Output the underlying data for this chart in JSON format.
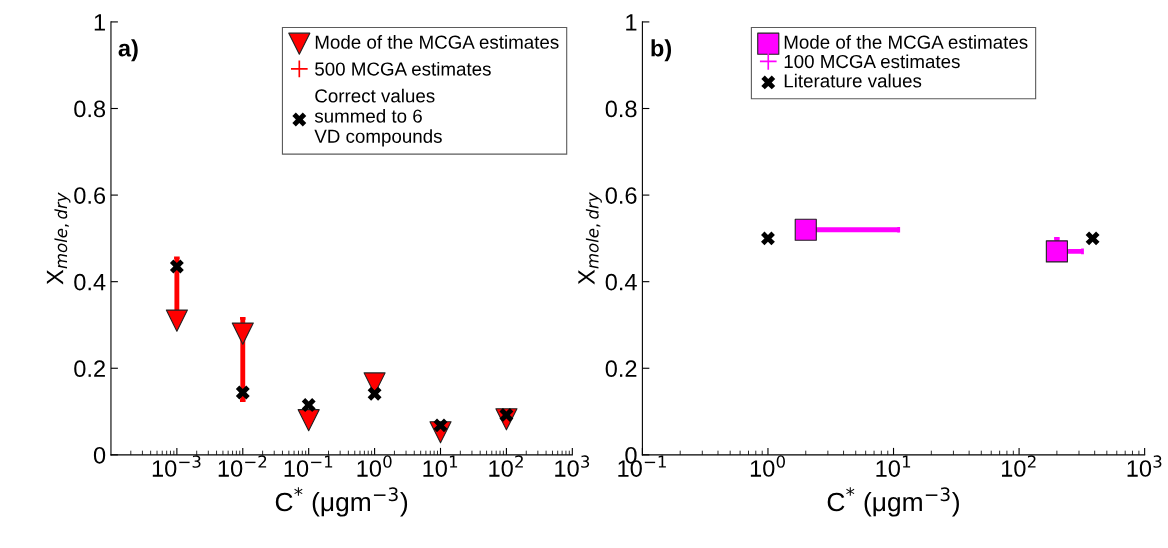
{
  "chart_data": [
    {
      "type": "scatter",
      "annotations": [
        "a)"
      ],
      "xlabel": "C$^{*}$ (μgm$^{−3}$)",
      "ylabel": "X$_{mole,dry}$",
      "log": "x",
      "legend": "top right",
      "grid": false,
      "xlim": [
        0.0001,
        1000
      ],
      "ylim": [
        0,
        1
      ],
      "xticks": [
        {
          "value": 0.001,
          "label": "10$^{−3}$"
        },
        {
          "value": 0.01,
          "label": "10$^{−2}$"
        },
        {
          "value": 0.1,
          "label": "10$^{−1}$"
        },
        {
          "value": 1,
          "label": "10$^{0}$"
        },
        {
          "value": 10,
          "label": "10$^{1}$"
        },
        {
          "value": 100,
          "label": "10$^{2}$"
        },
        {
          "value": 1000,
          "label": "10$^{3}$"
        }
      ],
      "yticks": [
        0,
        0.2,
        0.4,
        0.6,
        0.8,
        1
      ],
      "series": [
        {
          "name": "Mode of the MCGA estimates",
          "color": "#ff0000",
          "marker": "triangle",
          "x": [
            0.001,
            0.01,
            0.1,
            1,
            10,
            100
          ],
          "values": [
            0.31,
            0.28,
            0.08,
            0.165,
            0.052,
            0.082
          ],
          "errors": [
            [
              0.305,
              0.455
            ],
            [
              0.125,
              0.315
            ],
            [
              0.08,
              0.1
            ],
            null,
            null,
            null
          ]
        },
        {
          "name": "500 MCGA estimates",
          "color": "#ff0000",
          "marker": "none"
        },
        {
          "name": "Correct values\nsummed to 6\nVD compounds",
          "color": "#000000",
          "marker": "cross",
          "x": [
            0.001,
            0.01,
            0.1,
            1,
            10,
            100
          ],
          "values": [
            0.435,
            0.144,
            0.115,
            0.141,
            0.068,
            0.092
          ]
        }
      ]
    },
    {
      "type": "scatter",
      "annotations": [
        "b)"
      ],
      "xlabel": "C$^{*}$ (μgm$^{−3}$)",
      "ylabel": "X$_{mole,dry}$",
      "log": "x",
      "legend": "top",
      "grid": false,
      "xlim": [
        0.1,
        1000
      ],
      "ylim": [
        0,
        1
      ],
      "xticks": [
        {
          "value": 0.1,
          "label": "10$^{−1}$"
        },
        {
          "value": 1,
          "label": "10$^{0}$"
        },
        {
          "value": 10,
          "label": "10$^{1}$"
        },
        {
          "value": 100,
          "label": "10$^{2}$"
        },
        {
          "value": 1000,
          "label": "10$^{3}$"
        }
      ],
      "yticks": [
        0,
        0.2,
        0.4,
        0.6,
        0.8,
        1
      ],
      "series": [
        {
          "name": "Mode of the MCGA estimates",
          "color": "#ff00ff",
          "marker": "square",
          "x": [
            2,
            200
          ],
          "values": [
            0.52,
            0.47
          ],
          "errors": [
            [
              0.5,
              0.54
            ],
            [
              0.47,
              0.5
            ]
          ],
          "xerrors": [
            [
              2,
              11
            ],
            [
              200,
              320
            ]
          ]
        },
        {
          "name": "100 MCGA estimates",
          "color": "#ff00ff",
          "marker": "none"
        },
        {
          "name": "Literature values",
          "color": "#000000",
          "marker": "cross",
          "x": [
            1,
            385
          ],
          "values": [
            0.5,
            0.5
          ]
        }
      ]
    }
  ]
}
